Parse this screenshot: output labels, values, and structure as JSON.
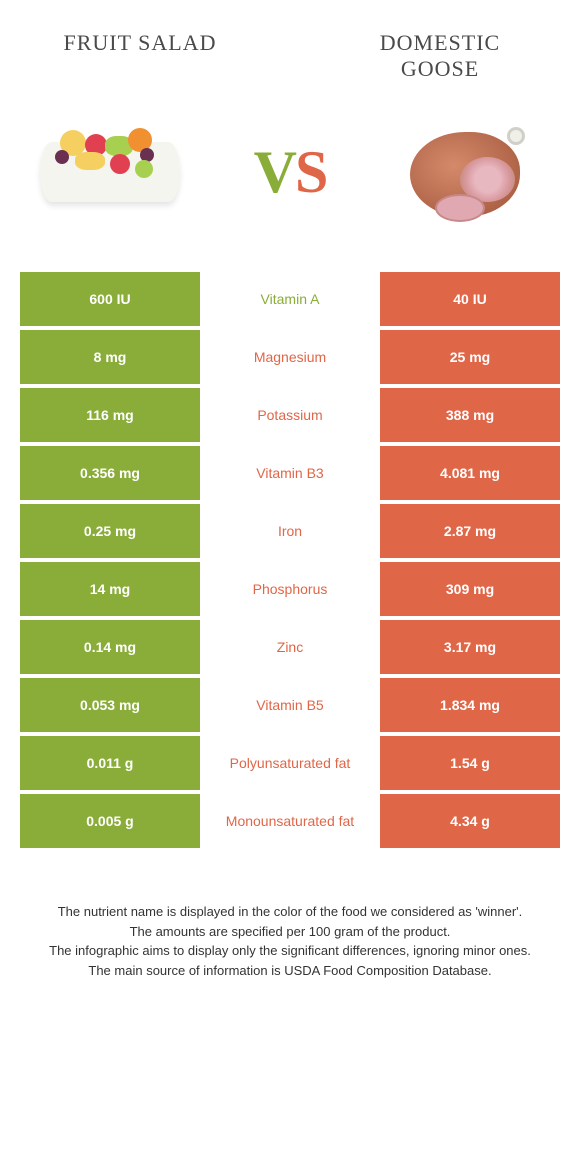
{
  "colors": {
    "green": "#8aad3a",
    "orange": "#e06648",
    "background": "#ffffff",
    "text": "#333333"
  },
  "header": {
    "left_title": "Fruit salad",
    "right_title": "Domestic goose",
    "vs_v": "V",
    "vs_s": "S"
  },
  "fruit_colors": {
    "yellow": "#f5d060",
    "red": "#e04050",
    "green": "#a8d050",
    "orange": "#f09030",
    "purple": "#6a3050"
  },
  "rows": [
    {
      "left": "600 IU",
      "label": "Vitamin A",
      "right": "40 IU",
      "winner": "green"
    },
    {
      "left": "8 mg",
      "label": "Magnesium",
      "right": "25 mg",
      "winner": "orange"
    },
    {
      "left": "116 mg",
      "label": "Potassium",
      "right": "388 mg",
      "winner": "orange"
    },
    {
      "left": "0.356 mg",
      "label": "Vitamin B3",
      "right": "4.081 mg",
      "winner": "orange"
    },
    {
      "left": "0.25 mg",
      "label": "Iron",
      "right": "2.87 mg",
      "winner": "orange"
    },
    {
      "left": "14 mg",
      "label": "Phosphorus",
      "right": "309 mg",
      "winner": "orange"
    },
    {
      "left": "0.14 mg",
      "label": "Zinc",
      "right": "3.17 mg",
      "winner": "orange"
    },
    {
      "left": "0.053 mg",
      "label": "Vitamin B5",
      "right": "1.834 mg",
      "winner": "orange"
    },
    {
      "left": "0.011 g",
      "label": "Polyunsaturated fat",
      "right": "1.54 g",
      "winner": "orange"
    },
    {
      "left": "0.005 g",
      "label": "Monounsaturated fat",
      "right": "4.34 g",
      "winner": "orange"
    }
  ],
  "footer": {
    "line1": "The nutrient name is displayed in the color of the food we considered as 'winner'.",
    "line2": "The amounts are specified per 100 gram of the product.",
    "line3": "The infographic aims to display only the significant differences, ignoring minor ones.",
    "line4": "The main source of information is USDA Food Composition Database."
  }
}
